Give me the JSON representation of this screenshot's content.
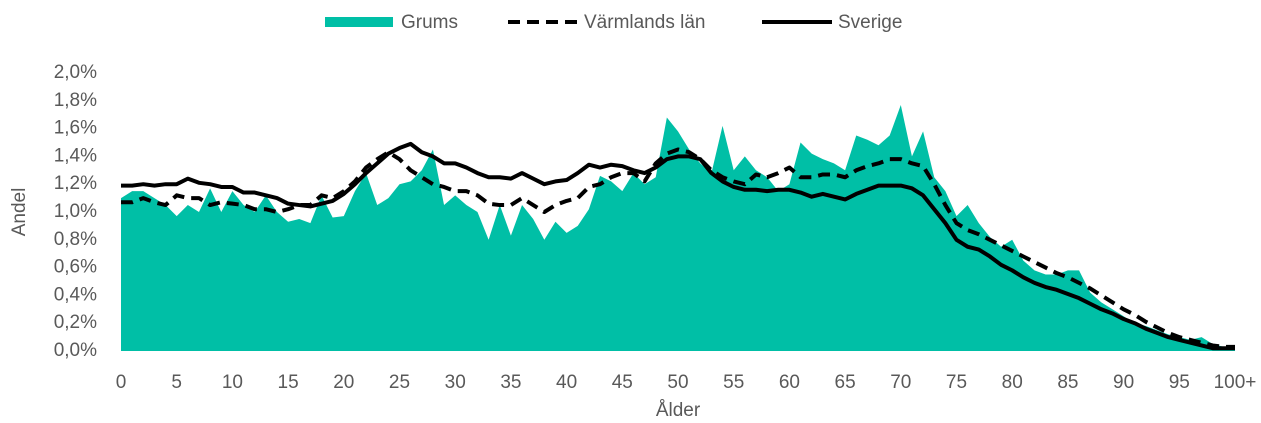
{
  "chart_data": {
    "type": "line",
    "xlabel": "Ålder",
    "ylabel": "Andel",
    "legend": "top",
    "categories": [
      "0",
      null,
      null,
      null,
      null,
      "5",
      null,
      null,
      null,
      null,
      "10",
      null,
      null,
      null,
      null,
      "15",
      null,
      null,
      null,
      null,
      "20",
      null,
      null,
      null,
      null,
      "25",
      null,
      null,
      null,
      null,
      "30",
      null,
      null,
      null,
      null,
      "35",
      null,
      null,
      null,
      null,
      "40",
      null,
      null,
      null,
      null,
      "45",
      null,
      null,
      null,
      null,
      "50",
      null,
      null,
      null,
      null,
      "55",
      null,
      null,
      null,
      null,
      "60",
      null,
      null,
      null,
      null,
      "65",
      null,
      null,
      null,
      null,
      "70",
      null,
      null,
      null,
      null,
      "75",
      null,
      null,
      null,
      null,
      "80",
      null,
      null,
      null,
      null,
      "85",
      null,
      null,
      null,
      null,
      "90",
      null,
      null,
      null,
      null,
      "95",
      null,
      null,
      null,
      null,
      "100+"
    ],
    "ylim": [
      0,
      2.0
    ],
    "yticks": [
      {
        "value": 0,
        "label": "0,0%"
      },
      {
        "value": 0.2,
        "label": "0,2%"
      },
      {
        "value": 0.4,
        "label": "0,4%"
      },
      {
        "value": 0.6,
        "label": "0,6%"
      },
      {
        "value": 0.8,
        "label": "0,8%"
      },
      {
        "value": 1.0,
        "label": "1,0%"
      },
      {
        "value": 1.2,
        "label": "1,2%"
      },
      {
        "value": 1.4,
        "label": "1,4%"
      },
      {
        "value": 1.6,
        "label": "1,6%"
      },
      {
        "value": 1.8,
        "label": "1,8%"
      },
      {
        "value": 2.0,
        "label": "2,0%"
      }
    ],
    "series": [
      {
        "name": "Grums",
        "color": "#00bfa6",
        "fill": true,
        "dash": false,
        "values": [
          1.1,
          1.15,
          1.15,
          1.1,
          1.05,
          0.97,
          1.05,
          1.0,
          1.17,
          1.0,
          1.15,
          1.05,
          1.0,
          1.12,
          1.0,
          0.93,
          0.95,
          0.92,
          1.12,
          0.96,
          0.97,
          1.15,
          1.28,
          1.05,
          1.1,
          1.2,
          1.22,
          1.3,
          1.45,
          1.05,
          1.12,
          1.05,
          1.0,
          0.8,
          1.05,
          0.83,
          1.05,
          0.95,
          0.8,
          0.93,
          0.85,
          0.9,
          1.02,
          1.26,
          1.22,
          1.15,
          1.28,
          1.2,
          1.25,
          1.68,
          1.58,
          1.45,
          1.35,
          1.28,
          1.62,
          1.3,
          1.4,
          1.3,
          1.25,
          1.15,
          1.2,
          1.5,
          1.42,
          1.38,
          1.35,
          1.3,
          1.55,
          1.52,
          1.48,
          1.55,
          1.77,
          1.4,
          1.58,
          1.25,
          1.15,
          0.97,
          1.05,
          0.92,
          0.82,
          0.75,
          0.8,
          0.65,
          0.58,
          0.55,
          0.55,
          0.58,
          0.58,
          0.42,
          0.35,
          0.3,
          0.25,
          0.2,
          0.18,
          0.15,
          0.12,
          0.1,
          0.08,
          0.1,
          0.05,
          0.03,
          0.03
        ]
      },
      {
        "name": "Värmlands län",
        "color": "#000000",
        "fill": false,
        "dash": true,
        "values": [
          1.07,
          1.07,
          1.1,
          1.07,
          1.05,
          1.12,
          1.1,
          1.1,
          1.05,
          1.07,
          1.06,
          1.05,
          1.02,
          1.02,
          1.0,
          1.02,
          1.05,
          1.05,
          1.12,
          1.1,
          1.15,
          1.22,
          1.32,
          1.38,
          1.43,
          1.38,
          1.3,
          1.25,
          1.2,
          1.18,
          1.15,
          1.15,
          1.12,
          1.06,
          1.05,
          1.05,
          1.1,
          1.05,
          1.0,
          1.05,
          1.08,
          1.1,
          1.18,
          1.2,
          1.25,
          1.28,
          1.28,
          1.22,
          1.35,
          1.42,
          1.45,
          1.43,
          1.38,
          1.3,
          1.25,
          1.22,
          1.2,
          1.27,
          1.25,
          1.28,
          1.32,
          1.25,
          1.25,
          1.27,
          1.27,
          1.25,
          1.3,
          1.33,
          1.35,
          1.38,
          1.38,
          1.35,
          1.33,
          1.2,
          1.05,
          0.92,
          0.87,
          0.84,
          0.8,
          0.76,
          0.72,
          0.68,
          0.64,
          0.6,
          0.56,
          0.53,
          0.49,
          0.45,
          0.4,
          0.35,
          0.3,
          0.26,
          0.21,
          0.17,
          0.13,
          0.1,
          0.08,
          0.06,
          0.04,
          0.03,
          0.03
        ]
      },
      {
        "name": "Sverige",
        "color": "#000000",
        "fill": false,
        "dash": false,
        "values": [
          1.19,
          1.19,
          1.2,
          1.19,
          1.2,
          1.2,
          1.24,
          1.21,
          1.2,
          1.18,
          1.18,
          1.14,
          1.14,
          1.12,
          1.1,
          1.06,
          1.05,
          1.04,
          1.06,
          1.08,
          1.13,
          1.2,
          1.28,
          1.35,
          1.42,
          1.46,
          1.49,
          1.43,
          1.4,
          1.35,
          1.35,
          1.32,
          1.28,
          1.25,
          1.25,
          1.24,
          1.28,
          1.24,
          1.2,
          1.22,
          1.23,
          1.28,
          1.34,
          1.32,
          1.34,
          1.33,
          1.3,
          1.28,
          1.32,
          1.38,
          1.4,
          1.4,
          1.38,
          1.28,
          1.22,
          1.18,
          1.16,
          1.16,
          1.15,
          1.16,
          1.16,
          1.14,
          1.11,
          1.13,
          1.11,
          1.09,
          1.13,
          1.16,
          1.19,
          1.19,
          1.19,
          1.17,
          1.12,
          1.02,
          0.92,
          0.8,
          0.75,
          0.73,
          0.68,
          0.62,
          0.58,
          0.53,
          0.49,
          0.46,
          0.44,
          0.41,
          0.38,
          0.34,
          0.3,
          0.27,
          0.23,
          0.2,
          0.16,
          0.13,
          0.1,
          0.08,
          0.06,
          0.04,
          0.02,
          0.02,
          0.02
        ]
      }
    ]
  }
}
